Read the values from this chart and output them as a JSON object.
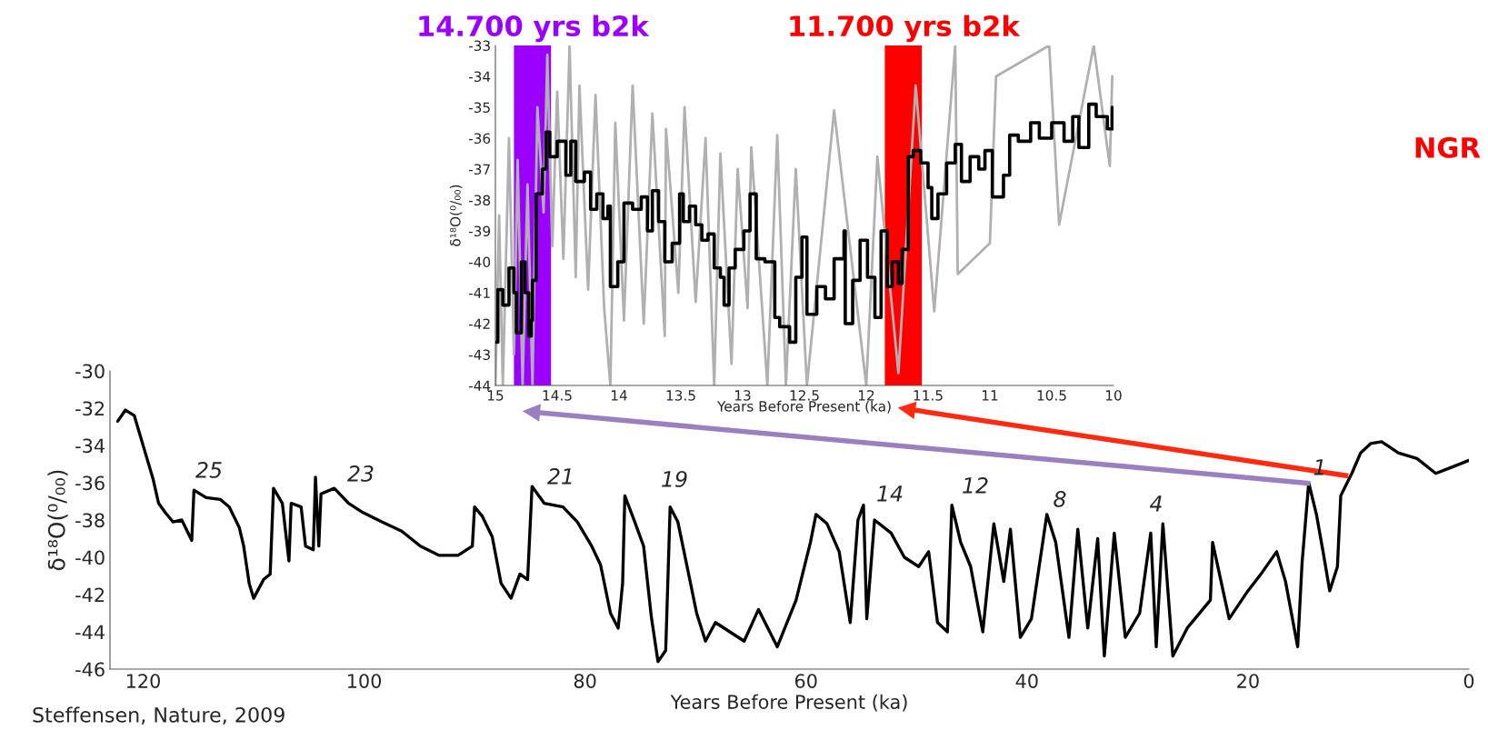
{
  "chart_data": [
    {
      "type": "line",
      "xlabel": "Years Before Present (ka)",
      "ylabel": "δ¹⁸O(⁰/₀₀)",
      "xlim": [
        15,
        10
      ],
      "xticks": [
        15,
        14.5,
        14,
        13.5,
        13,
        12.5,
        12,
        11.5,
        11,
        10.5,
        10
      ],
      "ylim": [
        -44,
        -33
      ],
      "yticks": [
        -44,
        -43,
        -42,
        -41,
        -40,
        -39,
        -38,
        -37,
        -36,
        -35,
        -34,
        -33
      ],
      "bands": [
        {
          "axis": "x",
          "from": 14.85,
          "to": 14.55,
          "label": "14.700 yrs b2k",
          "color": "#9b00ff"
        },
        {
          "axis": "x",
          "from": 11.85,
          "to": 11.55,
          "label": "11.700 yrs b2k",
          "color": "#ff0000"
        }
      ],
      "annotations": [
        "NGR"
      ],
      "series": [
        {
          "color": "#b0b0b0",
          "x": [
            15.0,
            14.97,
            14.94,
            14.89,
            14.85,
            14.82,
            14.78,
            14.74,
            14.7,
            14.66,
            14.61,
            14.58,
            14.54,
            14.5,
            14.45,
            14.4,
            14.35,
            14.32,
            14.25,
            14.19,
            14.12,
            14.07,
            14.03,
            13.96,
            13.89,
            13.8,
            13.73,
            13.63,
            13.62,
            13.52,
            13.47,
            13.38,
            13.3,
            13.23,
            13.18,
            13.09,
            13.04,
            12.96,
            12.93,
            12.8,
            12.72,
            12.65,
            12.57,
            12.48,
            12.26,
            12.0,
            11.91,
            11.74,
            11.6,
            11.45,
            11.28,
            11.26,
            11.0,
            10.95,
            10.52,
            10.44,
            10.16,
            10.03,
            10.01
          ],
          "values": [
            -44.0,
            -38.5,
            -44.0,
            -36.0,
            -43.0,
            -36.7,
            -44.0,
            -37.5,
            -44.0,
            -35.0,
            -38.4,
            -33.3,
            -39.5,
            -34.5,
            -39.9,
            -33.0,
            -40.5,
            -34.3,
            -40.9,
            -34.6,
            -41.5,
            -44.0,
            -35.5,
            -41.9,
            -34.3,
            -42.0,
            -35.2,
            -42.4,
            -35.7,
            -41.0,
            -35.0,
            -41.3,
            -36.0,
            -44.0,
            -36.5,
            -43.3,
            -37.0,
            -41.5,
            -36.3,
            -44.0,
            -35.9,
            -44.0,
            -37.0,
            -44.0,
            -35.1,
            -44.0,
            -36.6,
            -43.6,
            -34.3,
            -41.6,
            -33.0,
            -40.4,
            -39.4,
            -34.0,
            -33.0,
            -38.8,
            -33.0,
            -36.9,
            -34.0
          ]
        },
        {
          "type": "step",
          "color": "#000000",
          "x": [
            14.99,
            14.98,
            14.94,
            14.89,
            14.85,
            14.83,
            14.79,
            14.76,
            14.73,
            14.71,
            14.7,
            14.67,
            14.62,
            14.59,
            14.56,
            14.5,
            14.43,
            14.39,
            14.35,
            14.28,
            14.23,
            14.18,
            14.13,
            14.09,
            14.07,
            14.01,
            13.96,
            13.89,
            13.82,
            13.77,
            13.73,
            13.68,
            13.63,
            13.57,
            13.51,
            13.48,
            13.43,
            13.38,
            13.33,
            13.28,
            13.23,
            13.18,
            13.15,
            13.11,
            13.06,
            12.99,
            12.94,
            12.89,
            12.82,
            12.74,
            12.7,
            12.62,
            12.57,
            12.52,
            12.48,
            12.4,
            12.33,
            12.26,
            12.18,
            12.17,
            12.11,
            12.05,
            11.99,
            11.93,
            11.88,
            11.83,
            11.79,
            11.74,
            11.71,
            11.66,
            11.62,
            11.56,
            11.5,
            11.47,
            11.42,
            11.35,
            11.28,
            11.23,
            11.16,
            11.09,
            11.04,
            10.98,
            10.89,
            10.84,
            10.77,
            10.67,
            10.6,
            10.5,
            10.4,
            10.33,
            10.28,
            10.2,
            10.14,
            10.05,
            10.01
          ],
          "values": [
            -42.6,
            -40.9,
            -41.4,
            -40.2,
            -41.0,
            -42.3,
            -40.0,
            -41.0,
            -42.4,
            -41.9,
            -40.6,
            -37.8,
            -37.0,
            -35.8,
            -36.6,
            -36.1,
            -37.2,
            -36.1,
            -37.4,
            -37.1,
            -38.3,
            -37.8,
            -38.6,
            -38.2,
            -40.8,
            -40.0,
            -38.1,
            -38.3,
            -37.9,
            -39.0,
            -37.7,
            -38.7,
            -40.0,
            -39.4,
            -37.8,
            -38.7,
            -38.2,
            -38.8,
            -39.3,
            -39.1,
            -40.2,
            -40.5,
            -41.4,
            -40.2,
            -39.6,
            -39.0,
            -37.8,
            -39.9,
            -40.0,
            -41.8,
            -42.1,
            -42.6,
            -40.5,
            -39.2,
            -41.7,
            -40.8,
            -41.2,
            -39.9,
            -39.0,
            -42.0,
            -40.6,
            -39.3,
            -40.5,
            -41.8,
            -39.0,
            -40.8,
            -40.0,
            -40.7,
            -39.6,
            -36.6,
            -36.4,
            -36.8,
            -37.6,
            -38.6,
            -37.8,
            -36.8,
            -36.2,
            -37.4,
            -36.6,
            -37.0,
            -36.4,
            -37.9,
            -37.2,
            -35.9,
            -36.1,
            -35.5,
            -36.0,
            -35.5,
            -36.1,
            -35.3,
            -36.3,
            -34.9,
            -35.3,
            -35.7,
            -35.0
          ]
        }
      ]
    },
    {
      "type": "line",
      "xlabel": "Years Before Present (ka)",
      "ylabel": "δ¹⁸O(⁰/₀₀)",
      "xlim": [
        123,
        0
      ],
      "xticks": [
        120,
        100,
        80,
        60,
        40,
        20,
        0
      ],
      "ylim": [
        -46,
        -30
      ],
      "yticks": [
        -46,
        -44,
        -42,
        -40,
        -38,
        -36,
        -34,
        -32,
        -30
      ],
      "annotations": [
        "25",
        "23",
        "21",
        "19",
        "14",
        "12",
        "8",
        "4",
        "1",
        "Steffensen, Nature, 2009"
      ],
      "series": [
        {
          "color": "#000000",
          "x": [
            122.3,
            121.6,
            120.8,
            119.9,
            119.1,
            118.6,
            118.0,
            117.3,
            116.5,
            115.6,
            115.4,
            114.3,
            113.0,
            112.2,
            111.3,
            110.9,
            110.4,
            110.0,
            109.1,
            108.5,
            108.2,
            107.4,
            106.8,
            106.6,
            105.7,
            105.3,
            104.6,
            104.4,
            104.1,
            103.9,
            102.7,
            101.4,
            100.1,
            98.4,
            96.6,
            94.9,
            93.2,
            91.5,
            90.2,
            90.0,
            89.3,
            88.4,
            87.6,
            86.7,
            85.9,
            85.2,
            84.8,
            83.7,
            82.0,
            80.7,
            79.4,
            78.6,
            77.7,
            77.0,
            76.6,
            76.4,
            75.5,
            74.7,
            74.0,
            73.4,
            72.7,
            72.3,
            71.6,
            70.8,
            69.9,
            69.1,
            68.2,
            66.9,
            65.6,
            64.3,
            62.6,
            60.9,
            59.6,
            59.1,
            58.1,
            57.0,
            56.0,
            55.3,
            54.8,
            54.5,
            53.8,
            52.3,
            51.1,
            49.8,
            48.9,
            48.1,
            47.2,
            46.8,
            46.0,
            45.1,
            44.0,
            43.0,
            42.1,
            41.5,
            40.6,
            39.6,
            38.2,
            37.4,
            36.2,
            35.4,
            34.5,
            33.6,
            33.0,
            32.1,
            31.1,
            29.8,
            28.8,
            28.3,
            27.7,
            26.8,
            25.5,
            23.4,
            23.2,
            21.7,
            20.0,
            18.7,
            17.4,
            16.6,
            15.5,
            15.1,
            14.5,
            13.8,
            13.2,
            12.6,
            11.9,
            11.6,
            10.6,
            9.8,
            8.9,
            7.9,
            6.4,
            4.7,
            3.0,
            1.7,
            0.0
          ],
          "values": [
            -32.7,
            -32.1,
            -32.4,
            -34.2,
            -35.8,
            -37.1,
            -37.6,
            -38.1,
            -38.0,
            -39.1,
            -36.4,
            -36.8,
            -36.9,
            -37.3,
            -38.4,
            -39.4,
            -41.4,
            -42.2,
            -41.2,
            -40.9,
            -36.3,
            -37.1,
            -40.2,
            -37.1,
            -37.3,
            -39.4,
            -39.6,
            -35.7,
            -39.4,
            -36.6,
            -36.3,
            -37.1,
            -37.6,
            -38.1,
            -38.6,
            -39.4,
            -39.9,
            -39.9,
            -39.4,
            -37.3,
            -37.8,
            -38.9,
            -41.4,
            -42.2,
            -40.9,
            -41.2,
            -36.2,
            -37.1,
            -37.3,
            -38.1,
            -39.4,
            -40.4,
            -43.0,
            -43.8,
            -41.4,
            -36.7,
            -38.1,
            -39.4,
            -43.2,
            -45.6,
            -45.0,
            -37.3,
            -38.1,
            -40.4,
            -43.0,
            -44.5,
            -43.5,
            -44.0,
            -44.5,
            -42.8,
            -44.8,
            -42.3,
            -39.2,
            -37.7,
            -38.2,
            -39.7,
            -43.5,
            -38.0,
            -37.2,
            -43.3,
            -38.0,
            -38.7,
            -40.0,
            -40.5,
            -39.7,
            -43.5,
            -44.0,
            -37.2,
            -39.2,
            -40.5,
            -44.0,
            -38.2,
            -41.3,
            -38.5,
            -44.3,
            -43.3,
            -37.7,
            -39.2,
            -44.3,
            -38.5,
            -43.8,
            -39.0,
            -45.3,
            -38.7,
            -44.3,
            -43.0,
            -38.7,
            -44.8,
            -38.2,
            -45.3,
            -43.8,
            -42.3,
            -39.2,
            -43.3,
            -41.8,
            -40.8,
            -39.7,
            -41.3,
            -44.8,
            -40.3,
            -36.0,
            -37.7,
            -39.7,
            -41.8,
            -40.5,
            -36.7,
            -35.5,
            -34.4,
            -33.9,
            -33.8,
            -34.4,
            -34.7,
            -35.5,
            -35.2,
            -34.8
          ]
        }
      ]
    }
  ]
}
